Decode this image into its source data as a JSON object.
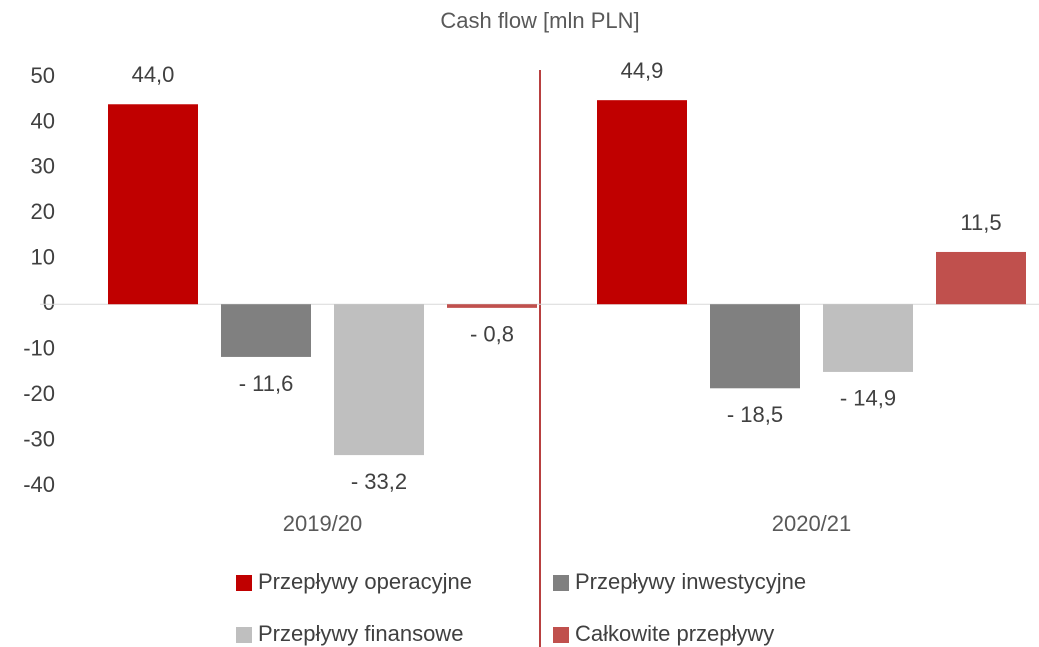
{
  "chart_data": {
    "type": "bar",
    "title": "Cash flow [mln PLN]",
    "categories": [
      "2019/20",
      "2020/21"
    ],
    "series": [
      {
        "name": "Przepływy operacyjne",
        "color": "#c00000",
        "values": [
          44.0,
          44.9
        ],
        "value_labels": [
          "44,0",
          "44,9"
        ]
      },
      {
        "name": "Przepływy inwestycyjne",
        "color": "#808080",
        "values": [
          -11.6,
          -18.5
        ],
        "value_labels": [
          "- 11,6",
          "- 18,5"
        ]
      },
      {
        "name": "Przepływy finansowe",
        "color": "#bfbfbf",
        "values": [
          -33.2,
          -14.9
        ],
        "value_labels": [
          "- 33,2",
          "- 14,9"
        ]
      },
      {
        "name": "Całkowite przepływy",
        "color": "#c0504d",
        "values": [
          -0.8,
          11.5
        ],
        "value_labels": [
          "- 0,8",
          "11,5"
        ]
      }
    ],
    "ylim": [
      -40,
      50
    ],
    "yticks": [
      -40,
      -30,
      -20,
      -10,
      0,
      10,
      20,
      30,
      40,
      50
    ],
    "grid": false
  }
}
